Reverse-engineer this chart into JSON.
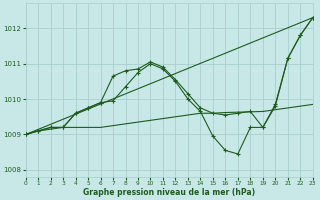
{
  "title": "Graphe pression niveau de la mer (hPa)",
  "bg": "#c8e8e8",
  "grid_color": "#a8cece",
  "lc": "#1e5c1e",
  "xlim": [
    0,
    23
  ],
  "ylim": [
    1007.8,
    1012.7
  ],
  "yticks": [
    1008,
    1009,
    1010,
    1011,
    1012
  ],
  "xticks": [
    0,
    1,
    2,
    3,
    4,
    5,
    6,
    7,
    8,
    9,
    10,
    11,
    12,
    13,
    14,
    15,
    16,
    17,
    18,
    19,
    20,
    21,
    22,
    23
  ],
  "line_diagonal": [
    [
      0,
      23
    ],
    [
      1009.0,
      1012.3
    ]
  ],
  "line_flat_x": [
    0,
    1,
    2,
    3,
    4,
    5,
    6,
    7,
    8,
    9,
    10,
    11,
    12,
    13,
    14,
    15,
    16,
    17,
    18,
    19,
    20,
    21,
    22,
    23
  ],
  "line_flat_y": [
    1009.0,
    1009.1,
    1009.15,
    1009.2,
    1009.2,
    1009.2,
    1009.2,
    1009.25,
    1009.3,
    1009.35,
    1009.4,
    1009.45,
    1009.5,
    1009.55,
    1009.6,
    1009.6,
    1009.62,
    1009.63,
    1009.64,
    1009.65,
    1009.7,
    1009.75,
    1009.8,
    1009.85
  ],
  "line_curve1_x": [
    0,
    1,
    2,
    3,
    4,
    5,
    6,
    7,
    8,
    9,
    10,
    11,
    12,
    13,
    14,
    15,
    16,
    17,
    18,
    19,
    20,
    21,
    22,
    23
  ],
  "line_curve1_y": [
    1009.0,
    1009.1,
    1009.2,
    1009.2,
    1009.6,
    1009.75,
    1009.9,
    1010.65,
    1010.8,
    1010.85,
    1011.05,
    1010.9,
    1010.55,
    1010.15,
    1009.75,
    1009.6,
    1009.55,
    1009.6,
    1009.65,
    1009.2,
    1009.8,
    1011.15,
    1011.8,
    1012.3
  ],
  "line_curve2_x": [
    0,
    1,
    2,
    3,
    4,
    5,
    6,
    7,
    8,
    9,
    10,
    11,
    12,
    13,
    14,
    15,
    16,
    17,
    18,
    19,
    20,
    21,
    22,
    23
  ],
  "line_curve2_y": [
    1009.0,
    1009.1,
    1009.2,
    1009.2,
    1009.6,
    1009.75,
    1009.9,
    1009.95,
    1010.35,
    1010.75,
    1011.0,
    1010.85,
    1010.5,
    1010.0,
    1009.65,
    1008.95,
    1008.55,
    1008.45,
    1009.2,
    1009.2,
    1009.85,
    1011.15,
    1011.8,
    1012.3
  ]
}
